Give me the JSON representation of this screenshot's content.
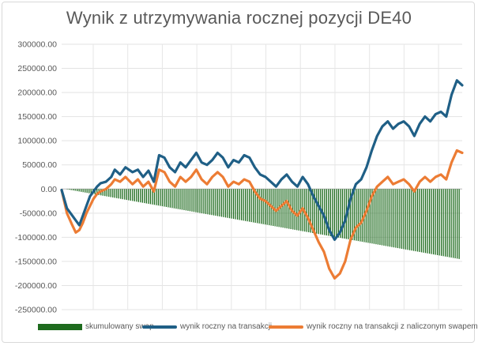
{
  "chart_data": {
    "type": "bar+line",
    "title": "Wynik z utrzymywania rocznej pozycji DE40",
    "ylim": [
      -250000,
      300000
    ],
    "yticks": [
      "300000.00",
      "250000.00",
      "200000.00",
      "150000.00",
      "100000.00",
      "50000.00",
      "0.00",
      "-50000.00",
      "-100000.00",
      "-150000.00",
      "-200000.00",
      "-250000.00"
    ],
    "ytick_values": [
      300000,
      250000,
      200000,
      150000,
      100000,
      50000,
      0,
      -50000,
      -100000,
      -150000,
      -200000,
      -250000
    ],
    "grid": true,
    "legend_position": "bottom",
    "x_count": 200,
    "series": [
      {
        "name": "skumulowany swap",
        "type": "bar",
        "color": "#1e6b1e",
        "start_value": 0,
        "end_value": -145000
      },
      {
        "name": "wynik roczny na transakcji",
        "type": "line",
        "color": "#1f5f86",
        "points": [
          [
            0,
            -2000
          ],
          [
            3,
            -40000
          ],
          [
            6,
            -55000
          ],
          [
            8,
            -65000
          ],
          [
            10,
            -75000
          ],
          [
            12,
            -55000
          ],
          [
            14,
            -35000
          ],
          [
            16,
            -15000
          ],
          [
            18,
            -5000
          ],
          [
            20,
            5000
          ],
          [
            22,
            12000
          ],
          [
            25,
            15000
          ],
          [
            28,
            25000
          ],
          [
            30,
            40000
          ],
          [
            33,
            30000
          ],
          [
            36,
            45000
          ],
          [
            40,
            35000
          ],
          [
            43,
            40000
          ],
          [
            46,
            25000
          ],
          [
            49,
            38000
          ],
          [
            52,
            15000
          ],
          [
            55,
            70000
          ],
          [
            58,
            65000
          ],
          [
            61,
            45000
          ],
          [
            64,
            35000
          ],
          [
            67,
            55000
          ],
          [
            70,
            45000
          ],
          [
            73,
            60000
          ],
          [
            76,
            75000
          ],
          [
            79,
            55000
          ],
          [
            82,
            50000
          ],
          [
            85,
            60000
          ],
          [
            88,
            75000
          ],
          [
            91,
            65000
          ],
          [
            94,
            45000
          ],
          [
            97,
            60000
          ],
          [
            100,
            55000
          ],
          [
            103,
            70000
          ],
          [
            106,
            65000
          ],
          [
            109,
            45000
          ],
          [
            112,
            30000
          ],
          [
            115,
            25000
          ],
          [
            118,
            15000
          ],
          [
            121,
            5000
          ],
          [
            124,
            20000
          ],
          [
            127,
            30000
          ],
          [
            130,
            15000
          ],
          [
            133,
            5000
          ],
          [
            136,
            25000
          ],
          [
            139,
            10000
          ],
          [
            142,
            -15000
          ],
          [
            145,
            -35000
          ],
          [
            148,
            -55000
          ],
          [
            151,
            -85000
          ],
          [
            154,
            -105000
          ],
          [
            157,
            -90000
          ],
          [
            160,
            -65000
          ],
          [
            163,
            -20000
          ],
          [
            166,
            10000
          ],
          [
            169,
            20000
          ],
          [
            172,
            45000
          ],
          [
            175,
            80000
          ],
          [
            178,
            110000
          ],
          [
            181,
            130000
          ],
          [
            184,
            140000
          ],
          [
            187,
            125000
          ],
          [
            190,
            135000
          ],
          [
            193,
            140000
          ],
          [
            196,
            130000
          ],
          [
            199,
            110000
          ],
          [
            202,
            135000
          ],
          [
            205,
            150000
          ],
          [
            208,
            140000
          ],
          [
            211,
            155000
          ],
          [
            214,
            160000
          ],
          [
            217,
            150000
          ],
          [
            220,
            195000
          ],
          [
            223,
            225000
          ],
          [
            226,
            215000
          ]
        ]
      },
      {
        "name": "wynik roczny na transakcji z naliczonym swapem",
        "type": "line",
        "color": "#ec7c34",
        "points": [
          [
            0,
            -2000
          ],
          [
            3,
            -50000
          ],
          [
            6,
            -75000
          ],
          [
            8,
            -90000
          ],
          [
            10,
            -85000
          ],
          [
            12,
            -70000
          ],
          [
            14,
            -50000
          ],
          [
            16,
            -35000
          ],
          [
            18,
            -20000
          ],
          [
            20,
            -10000
          ],
          [
            22,
            -5000
          ],
          [
            25,
            0
          ],
          [
            28,
            10000
          ],
          [
            30,
            20000
          ],
          [
            33,
            15000
          ],
          [
            36,
            25000
          ],
          [
            40,
            10000
          ],
          [
            43,
            20000
          ],
          [
            46,
            5000
          ],
          [
            49,
            15000
          ],
          [
            52,
            -5000
          ],
          [
            55,
            40000
          ],
          [
            58,
            35000
          ],
          [
            61,
            15000
          ],
          [
            64,
            5000
          ],
          [
            67,
            25000
          ],
          [
            70,
            15000
          ],
          [
            73,
            25000
          ],
          [
            76,
            40000
          ],
          [
            79,
            20000
          ],
          [
            82,
            10000
          ],
          [
            85,
            25000
          ],
          [
            88,
            35000
          ],
          [
            91,
            25000
          ],
          [
            94,
            5000
          ],
          [
            97,
            15000
          ],
          [
            100,
            10000
          ],
          [
            103,
            20000
          ],
          [
            106,
            15000
          ],
          [
            109,
            -5000
          ],
          [
            112,
            -20000
          ],
          [
            115,
            -25000
          ],
          [
            118,
            -35000
          ],
          [
            121,
            -45000
          ],
          [
            124,
            -35000
          ],
          [
            127,
            -25000
          ],
          [
            130,
            -45000
          ],
          [
            133,
            -55000
          ],
          [
            136,
            -40000
          ],
          [
            139,
            -60000
          ],
          [
            142,
            -85000
          ],
          [
            145,
            -110000
          ],
          [
            148,
            -130000
          ],
          [
            151,
            -165000
          ],
          [
            154,
            -185000
          ],
          [
            157,
            -175000
          ],
          [
            160,
            -150000
          ],
          [
            163,
            -105000
          ],
          [
            166,
            -80000
          ],
          [
            169,
            -70000
          ],
          [
            172,
            -45000
          ],
          [
            175,
            -15000
          ],
          [
            178,
            5000
          ],
          [
            181,
            15000
          ],
          [
            184,
            25000
          ],
          [
            187,
            10000
          ],
          [
            190,
            15000
          ],
          [
            193,
            20000
          ],
          [
            196,
            10000
          ],
          [
            199,
            -5000
          ],
          [
            202,
            15000
          ],
          [
            205,
            25000
          ],
          [
            208,
            15000
          ],
          [
            211,
            25000
          ],
          [
            214,
            30000
          ],
          [
            217,
            20000
          ],
          [
            220,
            55000
          ],
          [
            223,
            80000
          ],
          [
            226,
            75000
          ]
        ]
      }
    ]
  }
}
